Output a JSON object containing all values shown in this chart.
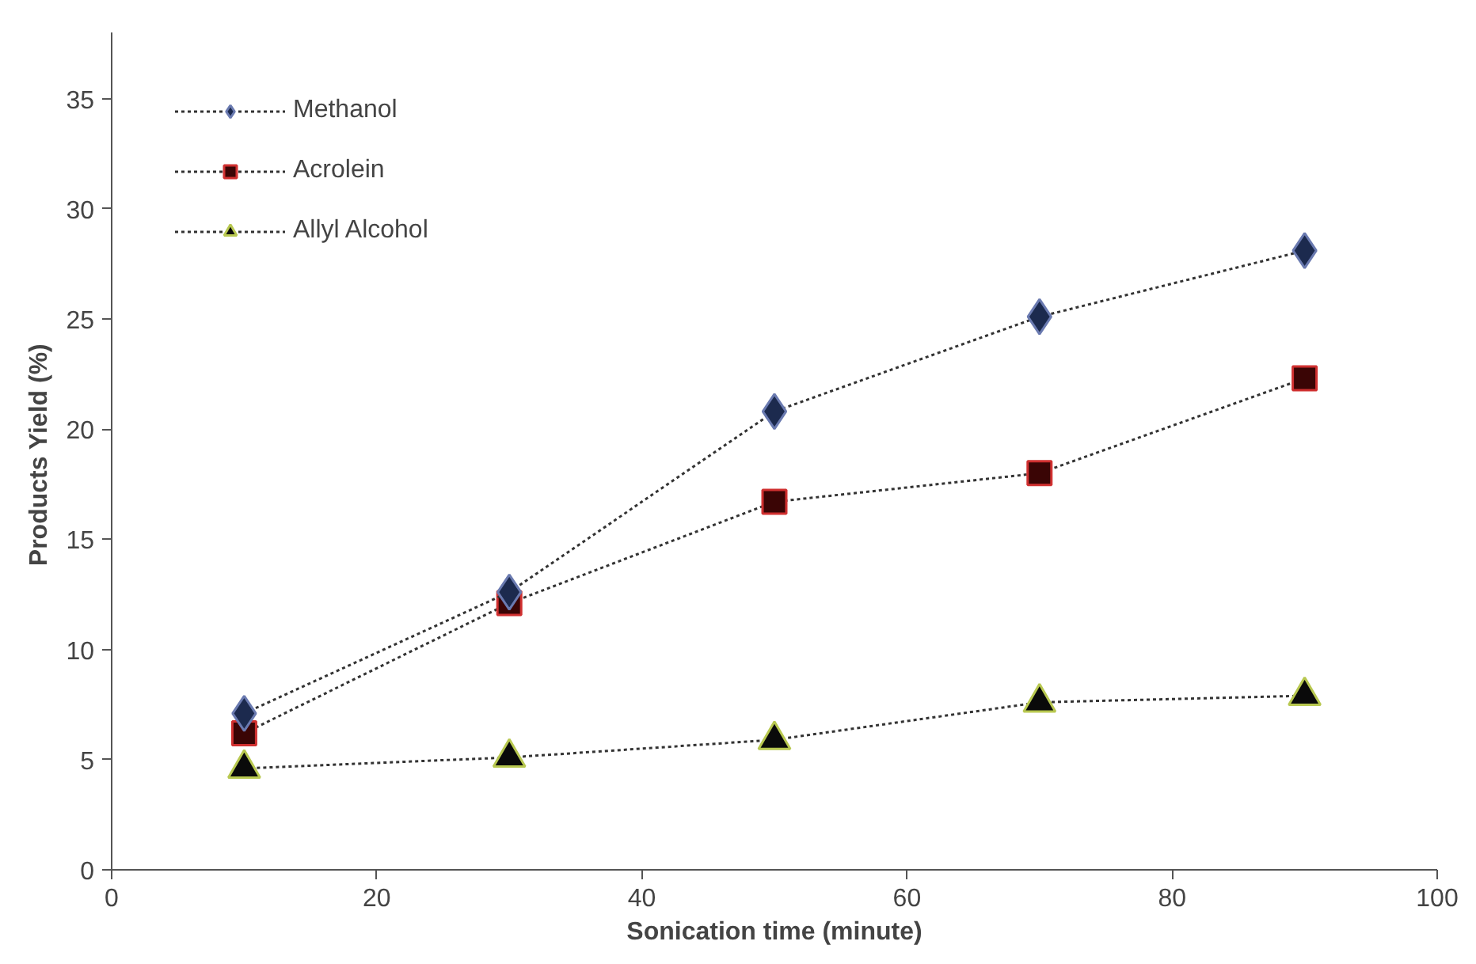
{
  "chart_data": {
    "type": "line",
    "xlabel": "Sonication time (minute)",
    "ylabel": "Products Yield  (%)",
    "x": [
      10,
      30,
      50,
      70,
      90
    ],
    "series": [
      {
        "name": "Methanol",
        "color": "#1c2a4e",
        "marker": "diamond",
        "values": [
          7.1,
          12.6,
          20.8,
          25.1,
          28.1
        ]
      },
      {
        "name": "Acrolein",
        "color": "#3a0505",
        "marker": "square",
        "values": [
          6.2,
          12.1,
          16.7,
          18.0,
          22.3
        ]
      },
      {
        "name": "Allyl Alcohol",
        "color": "#0a0a0a",
        "marker": "triangle",
        "values": [
          4.6,
          5.1,
          5.9,
          7.6,
          7.9
        ]
      }
    ],
    "xlim": [
      0,
      100
    ],
    "xticks": [
      0,
      20,
      40,
      60,
      80,
      100
    ],
    "ylim": [
      0,
      38
    ],
    "yticks": [
      0,
      5,
      10,
      15,
      20,
      25,
      30,
      35
    ],
    "grid": false,
    "legend": "top left",
    "line_style": "dotted"
  }
}
